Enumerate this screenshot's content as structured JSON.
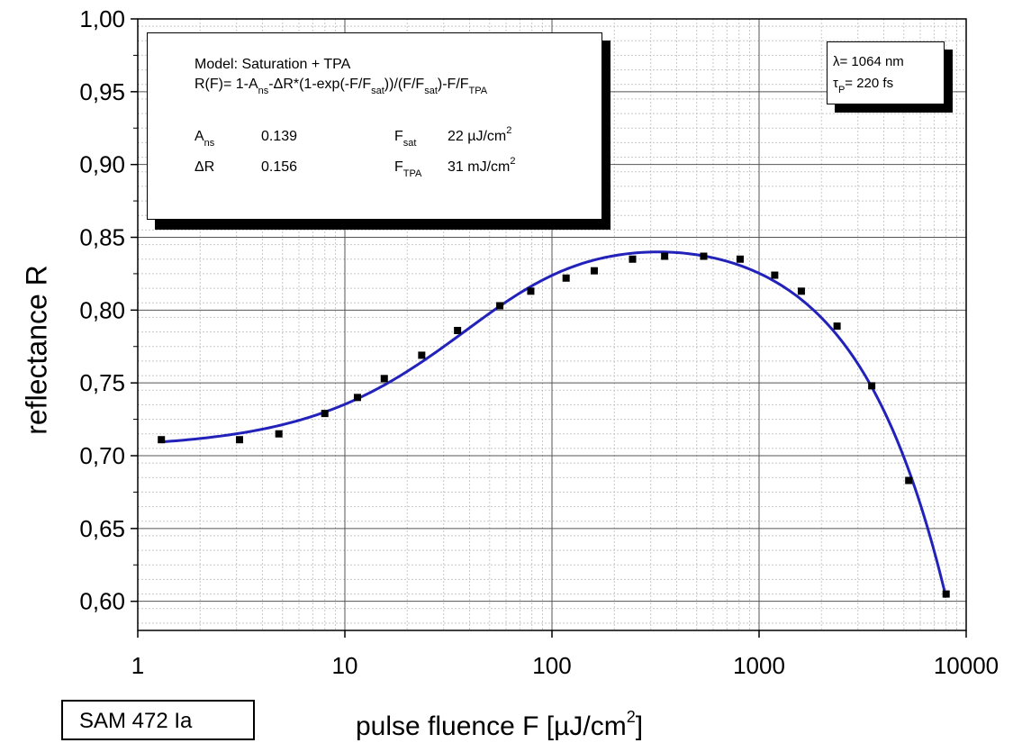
{
  "chart_data": {
    "type": "scatter",
    "x_scale": "log",
    "xlim": [
      1,
      10000
    ],
    "ylim": [
      0.58,
      1.0
    ],
    "grid": true,
    "x_ticks": [
      "1",
      "10",
      "100",
      "1000",
      "10000"
    ],
    "y_ticks": [
      "0,60",
      "0,65",
      "0,70",
      "0,75",
      "0,80",
      "0,85",
      "0,90",
      "0,95",
      "1,00"
    ],
    "ylabel": "reflectance R",
    "xlabel": {
      "main": "pulse fluence F [µJ/cm",
      "sup": "2",
      "end": "]"
    },
    "series": [
      {
        "marker": "square",
        "color": "#000000",
        "x": [
          1.3,
          3.1,
          4.8,
          8,
          11.5,
          15.5,
          23.5,
          35,
          56,
          79,
          117,
          160,
          245,
          350,
          540,
          810,
          1190,
          1600,
          2380,
          3500,
          5280,
          8000
        ],
        "y": [
          0.711,
          0.711,
          0.715,
          0.729,
          0.74,
          0.753,
          0.769,
          0.786,
          0.803,
          0.813,
          0.822,
          0.827,
          0.835,
          0.837,
          0.837,
          0.835,
          0.824,
          0.813,
          0.789,
          0.748,
          0.683,
          0.605
        ]
      },
      {
        "type": "fit-line",
        "color": "#2222bb",
        "function": "1 - Ans - dR*(1-exp(-F/Fsat))/(F/Fsat) - F/Ftpa",
        "params": {
          "Ans": 0.139,
          "dR": 0.156,
          "Fsat": 22,
          "Ftpa": 31000
        },
        "x_range": [
          1.3,
          8000
        ]
      }
    ]
  },
  "model_box": {
    "title": "Model: Saturation + TPA",
    "formula": [
      {
        "t": "R(F)= 1-A"
      },
      {
        "t": "ns",
        "s": "sub"
      },
      {
        "t": "-ΔR*(1-exp(-F/F"
      },
      {
        "t": "sat",
        "s": "sub"
      },
      {
        "t": "))/(F/F"
      },
      {
        "t": "sat",
        "s": "sub"
      },
      {
        "t": ")-F/F"
      },
      {
        "t": "TPA",
        "s": "sub"
      }
    ],
    "params": {
      "ans_label": "A",
      "ans_sub": "ns",
      "ans_value": "0.139",
      "dr_label": "ΔR",
      "dr_value": "0.156",
      "fsat_label": "F",
      "fsat_sub": "sat",
      "fsat_value": "22 µJ/cm",
      "fsat_sup": "2",
      "ftpa_label": "F",
      "ftpa_sub": "TPA",
      "ftpa_value": "31 mJ/cm",
      "ftpa_sup": "2"
    }
  },
  "conditions_box": {
    "wavelength": "λ= 1064 nm",
    "pulse_tau": "τ",
    "pulse_sub": "P",
    "pulse_value": "= 220 fs"
  },
  "sample_label": "SAM 472 Ia"
}
